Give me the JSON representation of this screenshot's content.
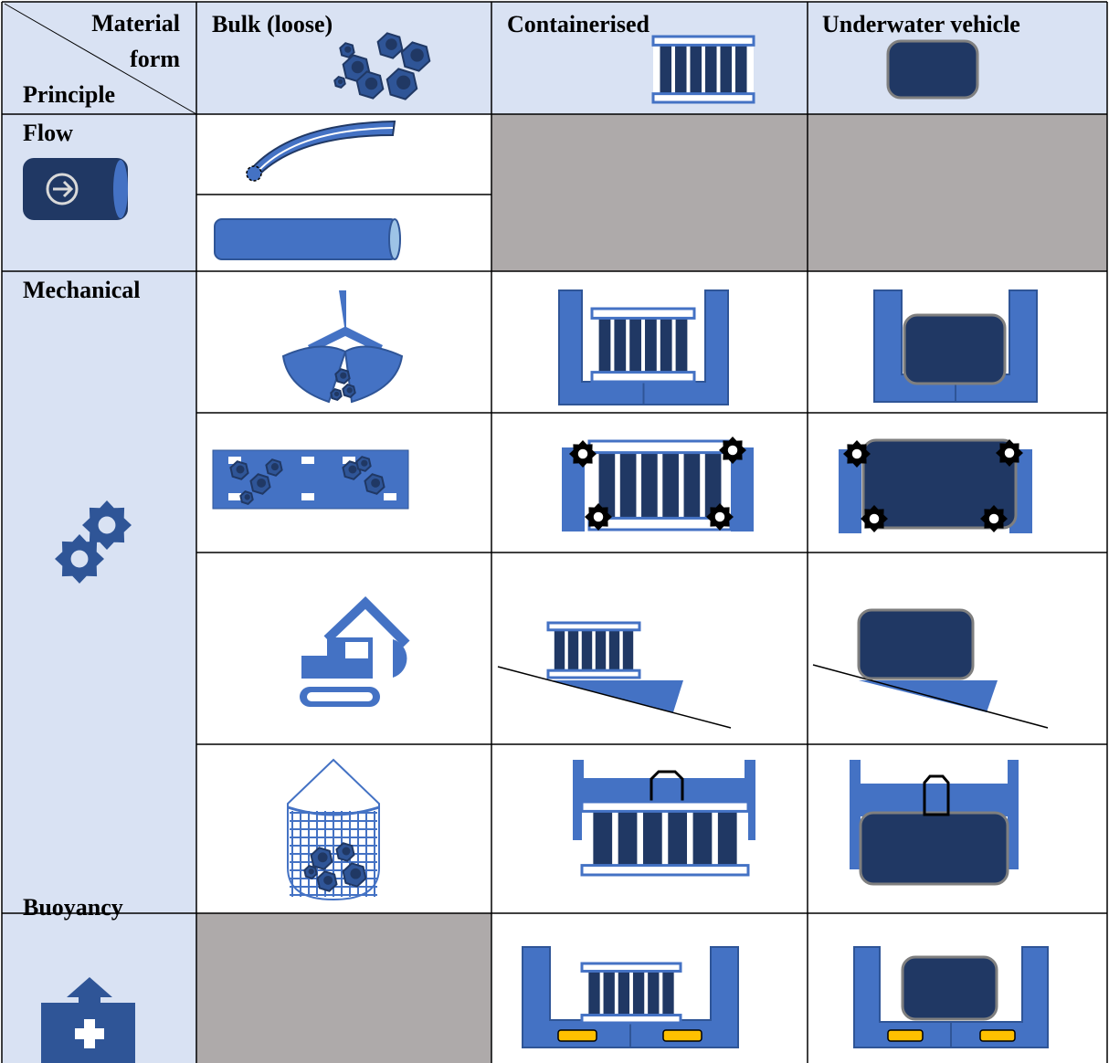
{
  "header": {
    "corner": {
      "top": [
        "Material",
        "form"
      ],
      "side": "Principle"
    },
    "columns": [
      "Bulk (loose)",
      "Containerised",
      "Underwater vehicle"
    ]
  },
  "rows": [
    {
      "label": "Flow"
    },
    {
      "label": "Mechanical"
    },
    {
      "label": "Buoyancy"
    }
  ]
}
